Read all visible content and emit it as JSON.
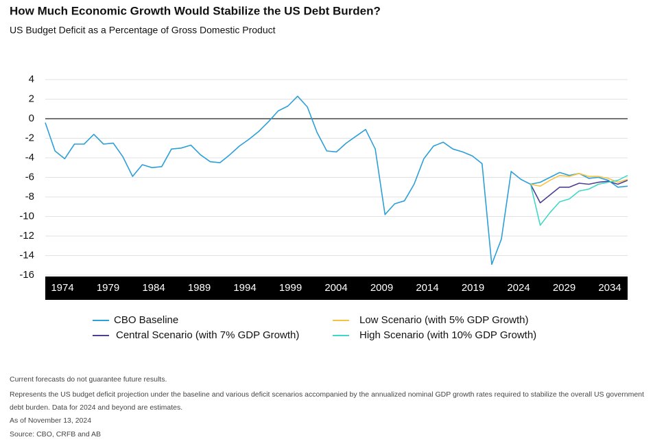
{
  "chart_data": {
    "type": "line",
    "title": "How Much Economic Growth Would Stabilize the US Debt Burden?",
    "subtitle": "US Budget Deficit as a Percentage of Gross Domestic Product",
    "x": [
      1974,
      1975,
      1976,
      1977,
      1978,
      1979,
      1980,
      1981,
      1982,
      1983,
      1984,
      1985,
      1986,
      1987,
      1988,
      1989,
      1990,
      1991,
      1992,
      1993,
      1994,
      1995,
      1996,
      1997,
      1998,
      1999,
      2000,
      2001,
      2002,
      2003,
      2004,
      2005,
      2006,
      2007,
      2008,
      2009,
      2010,
      2011,
      2012,
      2013,
      2014,
      2015,
      2016,
      2017,
      2018,
      2019,
      2020,
      2021,
      2022,
      2023,
      2024,
      2025,
      2026,
      2027,
      2028,
      2029,
      2030,
      2031,
      2032,
      2033,
      2034
    ],
    "series": [
      {
        "name": "CBO Baseline",
        "color": "#2b9fd8",
        "values": [
          -0.4,
          -3.3,
          -4.1,
          -2.6,
          -2.6,
          -1.6,
          -2.6,
          -2.5,
          -3.9,
          -5.9,
          -4.7,
          -5.0,
          -4.9,
          -3.1,
          -3.0,
          -2.7,
          -3.7,
          -4.4,
          -4.5,
          -3.7,
          -2.8,
          -2.1,
          -1.3,
          -0.3,
          0.8,
          1.3,
          2.3,
          1.2,
          -1.4,
          -3.3,
          -3.4,
          -2.5,
          -1.8,
          -1.1,
          -3.1,
          -9.8,
          -8.7,
          -8.4,
          -6.7,
          -4.1,
          -2.8,
          -2.4,
          -3.1,
          -3.4,
          -3.8,
          -4.6,
          -14.9,
          -12.3,
          -5.4,
          -6.2,
          -6.7,
          -6.5,
          -6.0,
          -5.5,
          -5.8,
          -5.6,
          -6.1,
          -6.0,
          -6.3,
          -7.0,
          -6.9
        ]
      },
      {
        "name": "Central Scenario (with 7% GDP Growth)",
        "color": "#4b3f8f",
        "values": [
          null,
          null,
          null,
          null,
          null,
          null,
          null,
          null,
          null,
          null,
          null,
          null,
          null,
          null,
          null,
          null,
          null,
          null,
          null,
          null,
          null,
          null,
          null,
          null,
          null,
          null,
          null,
          null,
          null,
          null,
          null,
          null,
          null,
          null,
          null,
          null,
          null,
          null,
          null,
          null,
          null,
          null,
          null,
          null,
          null,
          null,
          null,
          null,
          null,
          null,
          -6.7,
          -8.6,
          -7.8,
          -7.0,
          -7.0,
          -6.6,
          -6.7,
          -6.5,
          -6.4,
          -6.7,
          -6.3
        ]
      },
      {
        "name": "Low Scenario (with 5% GDP Growth)",
        "color": "#f5c342",
        "values": [
          null,
          null,
          null,
          null,
          null,
          null,
          null,
          null,
          null,
          null,
          null,
          null,
          null,
          null,
          null,
          null,
          null,
          null,
          null,
          null,
          null,
          null,
          null,
          null,
          null,
          null,
          null,
          null,
          null,
          null,
          null,
          null,
          null,
          null,
          null,
          null,
          null,
          null,
          null,
          null,
          null,
          null,
          null,
          null,
          null,
          null,
          null,
          null,
          null,
          null,
          -6.7,
          -6.9,
          -6.3,
          -5.8,
          -5.9,
          -5.6,
          -5.9,
          -5.9,
          -6.1,
          -6.5,
          -6.2
        ]
      },
      {
        "name": "High Scenario (with 10% GDP Growth)",
        "color": "#3fd8c6",
        "values": [
          null,
          null,
          null,
          null,
          null,
          null,
          null,
          null,
          null,
          null,
          null,
          null,
          null,
          null,
          null,
          null,
          null,
          null,
          null,
          null,
          null,
          null,
          null,
          null,
          null,
          null,
          null,
          null,
          null,
          null,
          null,
          null,
          null,
          null,
          null,
          null,
          null,
          null,
          null,
          null,
          null,
          null,
          null,
          null,
          null,
          null,
          null,
          null,
          null,
          null,
          -6.7,
          -10.9,
          -9.6,
          -8.5,
          -8.2,
          -7.4,
          -7.2,
          -6.7,
          -6.5,
          -6.3,
          -5.8
        ]
      }
    ],
    "xlim": [
      1974,
      2034
    ],
    "xticks": [
      1974,
      1979,
      1984,
      1989,
      1994,
      1999,
      2004,
      2009,
      2014,
      2019,
      2024,
      2029,
      2034
    ],
    "ylim": [
      -16,
      4
    ],
    "yticks": [
      4,
      2,
      0,
      -2,
      -4,
      -6,
      -8,
      -10,
      -12,
      -14,
      -16
    ],
    "grid": true,
    "notes": [
      "Current forecasts do not guarantee future results.",
      "Represents the US budget deficit projection under the baseline and various deficit scenarios accompanied by the annualized nominal GDP growth rates required to stabilize the overall US government",
      "debt burden. Data for 2024 and beyond are estimates.",
      "As of November 13, 2024",
      "Source: CBO, CRFB and AB"
    ]
  }
}
